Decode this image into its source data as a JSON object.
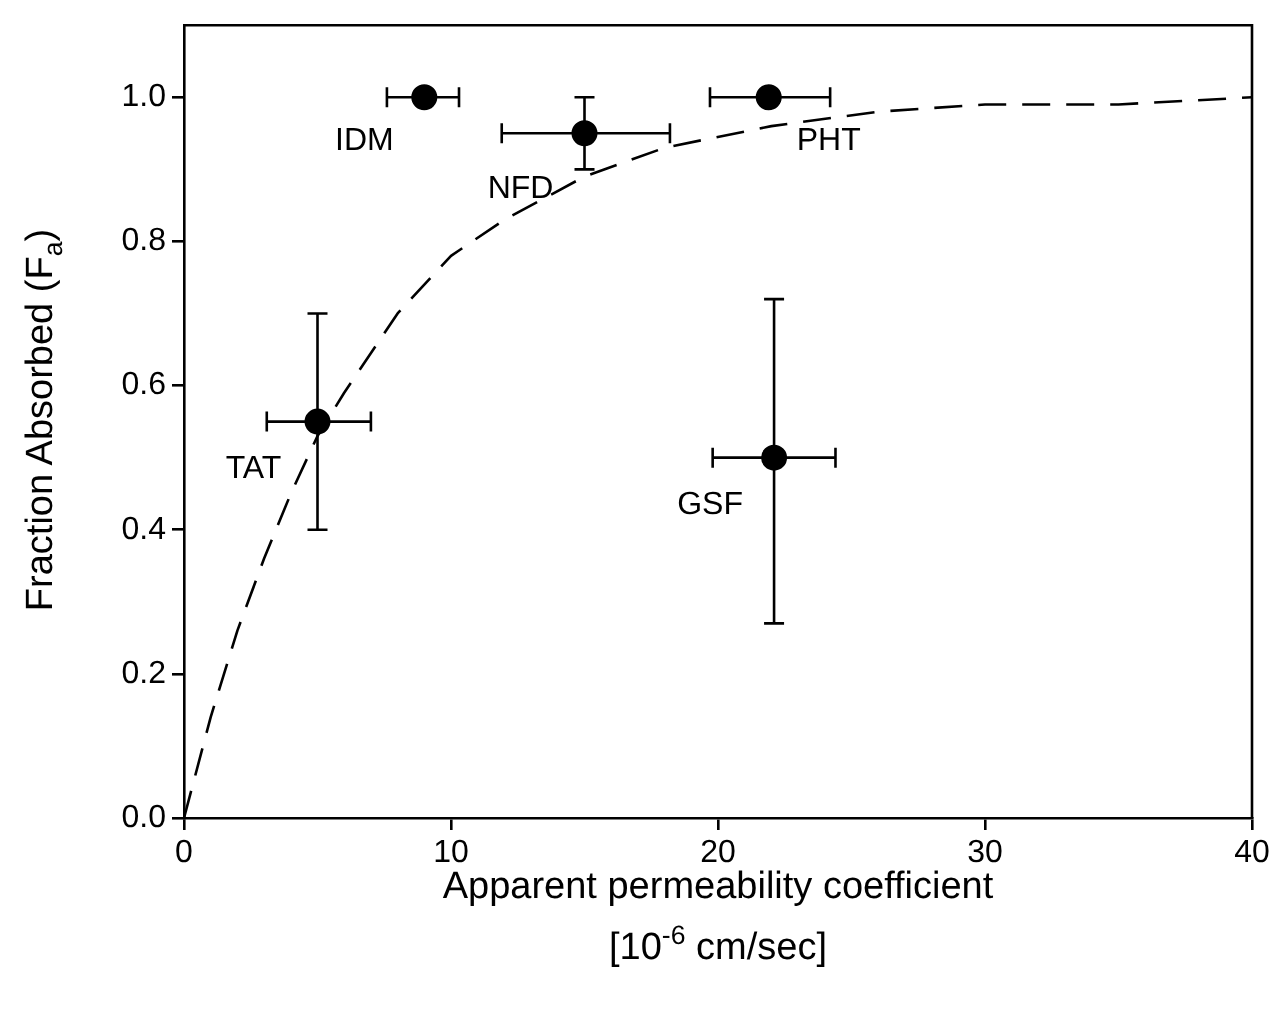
{
  "chart_data": {
    "type": "scatter",
    "xlabel": "Apparent permeability coefficient\n[10$^{-6}$ cm/sec]",
    "ylabel": "Fraction Absorbed (F$_{a}$)",
    "xlim": [
      0,
      40
    ],
    "xticks": [
      0,
      10,
      20,
      30,
      40
    ],
    "ylim": [
      0,
      1.1
    ],
    "yticks": [
      {
        "value": 0,
        "label": "0.0"
      },
      0.2,
      0.4,
      0.6,
      0.8,
      {
        "value": 1,
        "label": "1.0"
      }
    ],
    "grid": false,
    "legend": false,
    "marker": "circle",
    "series": [
      {
        "type": "scatter",
        "color": "#000000",
        "x": [
          9.0,
          15.0,
          21.9,
          5.0,
          22.1
        ],
        "values": [
          1.0,
          0.95,
          1.0,
          0.55,
          0.5
        ],
        "errors": [
          null,
          0.05,
          null,
          0.15,
          [
            0.27,
            0.72
          ]
        ],
        "xerrors": [
          [
            7.6,
            10.3
          ],
          [
            11.9,
            18.2
          ],
          [
            19.7,
            24.2
          ],
          [
            3.1,
            7.0
          ],
          [
            19.8,
            24.4
          ]
        ]
      },
      {
        "type": "line",
        "color": "#000000",
        "line_style": "dashed",
        "marker": "none",
        "x": [
          0,
          1,
          2,
          3,
          4,
          5,
          6,
          8,
          10,
          12,
          15,
          18,
          22,
          26,
          30,
          35,
          40
        ],
        "values": [
          0,
          0.14,
          0.26,
          0.36,
          0.45,
          0.53,
          0.59,
          0.7,
          0.78,
          0.83,
          0.89,
          0.93,
          0.96,
          0.98,
          0.99,
          0.99,
          1.0
        ]
      }
    ],
    "annotations": [
      {
        "text": "IDM",
        "x": 9.0,
        "y": 1.0
      },
      {
        "text": "NFD",
        "x": 15.0,
        "y": 0.95
      },
      {
        "text": "PHT",
        "x": 21.9,
        "y": 1.0
      },
      {
        "text": "TAT",
        "x": 5.0,
        "y": 0.55
      },
      {
        "text": "GSF",
        "x": 22.1,
        "y": 0.5
      }
    ]
  }
}
